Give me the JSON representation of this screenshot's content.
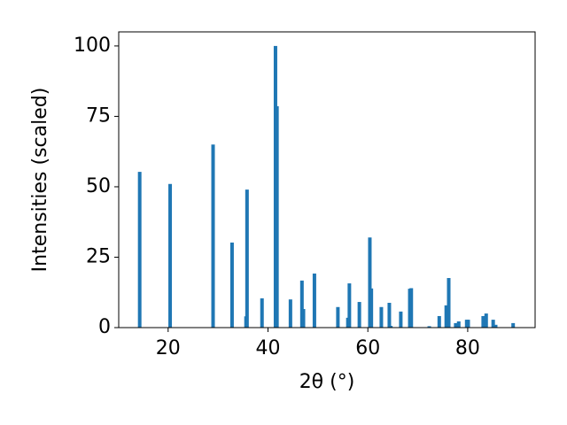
{
  "chart_data": {
    "type": "bar",
    "x": [
      14.3,
      20.4,
      29.0,
      32.8,
      35.6,
      35.8,
      38.8,
      41.5,
      41.8,
      44.5,
      46.8,
      47.1,
      49.3,
      54.0,
      56.0,
      56.3,
      58.3,
      60.4,
      60.7,
      62.7,
      64.3,
      64.6,
      66.6,
      68.4,
      68.7,
      72.3,
      74.3,
      75.7,
      76.2,
      77.6,
      78.2,
      79.8,
      80.1,
      83.1,
      83.7,
      85.1,
      85.6,
      89.1
    ],
    "values": [
      55.3,
      51,
      65,
      30.2,
      4,
      49,
      10.4,
      100,
      78.6,
      10,
      16.7,
      6.6,
      19.2,
      7.3,
      3.5,
      15.7,
      9.1,
      32,
      13.9,
      7.3,
      8.8,
      0.6,
      5.7,
      13.8,
      14,
      0.5,
      4.1,
      7.9,
      17.6,
      1.6,
      2.2,
      2.8,
      2.8,
      4.1,
      5,
      2.8,
      1,
      1.6
    ],
    "color": "#1f77b4",
    "xlabel": "2θ (°)",
    "ylabel": "Intensities (scaled)",
    "xlim": [
      10.1,
      93.5
    ],
    "xticks": [
      20,
      40,
      60,
      80
    ],
    "ylim": [
      0,
      105
    ],
    "yticks": [
      0,
      25,
      50,
      75,
      100
    ]
  }
}
